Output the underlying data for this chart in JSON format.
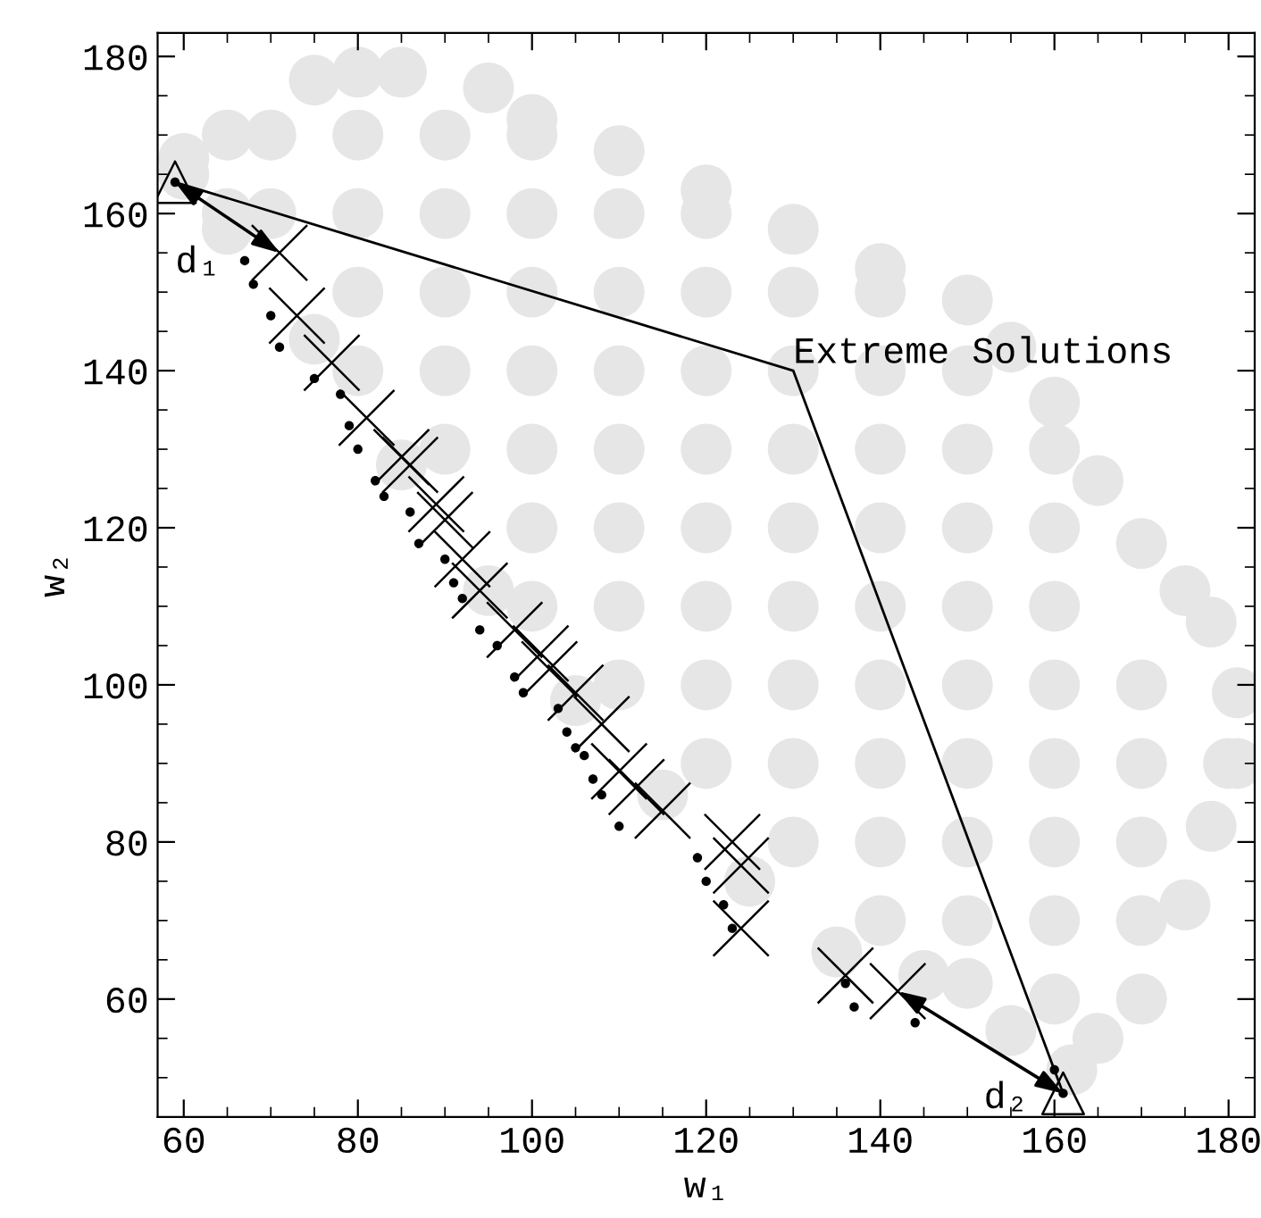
{
  "chart_data": {
    "type": "scatter",
    "xlabel": "w₁",
    "ylabel": "w₂",
    "xlim": [
      57,
      183
    ],
    "ylim": [
      45,
      183
    ],
    "xticks": [
      60,
      {
        "value": 65,
        "label": null
      },
      {
        "value": 70,
        "label": null
      },
      {
        "value": 75,
        "label": null
      },
      80,
      {
        "value": 85,
        "label": null
      },
      {
        "value": 90,
        "label": null
      },
      {
        "value": 95,
        "label": null
      },
      100,
      {
        "value": 105,
        "label": null
      },
      {
        "value": 110,
        "label": null
      },
      {
        "value": 115,
        "label": null
      },
      120,
      {
        "value": 125,
        "label": null
      },
      {
        "value": 130,
        "label": null
      },
      {
        "value": 135,
        "label": null
      },
      140,
      {
        "value": 145,
        "label": null
      },
      {
        "value": 150,
        "label": null
      },
      {
        "value": 155,
        "label": null
      },
      160,
      {
        "value": 165,
        "label": null
      },
      {
        "value": 170,
        "label": null
      },
      {
        "value": 175,
        "label": null
      },
      180
    ],
    "yticks": [
      {
        "value": 50,
        "label": null
      },
      {
        "value": 55,
        "label": null
      },
      60,
      {
        "value": 65,
        "label": null
      },
      {
        "value": 70,
        "label": null
      },
      {
        "value": 75,
        "label": null
      },
      80,
      {
        "value": 85,
        "label": null
      },
      {
        "value": 90,
        "label": null
      },
      {
        "value": 95,
        "label": null
      },
      100,
      {
        "value": 105,
        "label": null
      },
      {
        "value": 110,
        "label": null
      },
      {
        "value": 115,
        "label": null
      },
      120,
      {
        "value": 125,
        "label": null
      },
      {
        "value": 130,
        "label": null
      },
      {
        "value": 135,
        "label": null
      },
      140,
      {
        "value": 145,
        "label": null
      },
      {
        "value": 150,
        "label": null
      },
      {
        "value": 155,
        "label": null
      },
      160,
      {
        "value": 165,
        "label": null
      },
      {
        "value": 170,
        "label": null
      },
      {
        "value": 175,
        "label": null
      },
      180
    ],
    "grid": false,
    "series": [
      {
        "marker": "circle",
        "color": "#e6e6e6",
        "x": [
          60,
          65,
          65,
          70,
          70,
          80,
          80,
          80,
          80,
          90,
          90,
          90,
          90,
          90,
          100,
          100,
          100,
          100,
          100,
          100,
          100,
          110,
          110,
          110,
          110,
          110,
          110,
          110,
          110,
          120,
          120,
          120,
          120,
          120,
          120,
          120,
          120,
          130,
          130,
          130,
          130,
          130,
          130,
          130,
          130,
          140,
          140,
          140,
          140,
          140,
          140,
          140,
          140,
          140,
          150,
          150,
          150,
          150,
          150,
          150,
          150,
          150,
          160,
          160,
          160,
          160,
          160,
          160,
          160,
          160,
          170,
          170,
          170,
          170,
          170,
          180,
          75,
          80,
          85,
          95,
          100,
          120,
          130,
          140,
          150,
          155,
          160,
          165,
          170,
          175,
          178,
          181,
          181,
          178,
          175,
          165,
          162,
          155,
          150,
          145,
          135,
          125,
          115,
          105,
          95,
          85,
          75,
          65,
          60
        ],
        "values": [
          165,
          160,
          170,
          160,
          170,
          140,
          150,
          160,
          170,
          130,
          140,
          150,
          160,
          170,
          110,
          120,
          130,
          140,
          150,
          160,
          170,
          100,
          110,
          120,
          130,
          140,
          150,
          160,
          168,
          90,
          100,
          110,
          120,
          130,
          140,
          150,
          160,
          80,
          90,
          100,
          110,
          120,
          130,
          140,
          150,
          70,
          80,
          90,
          100,
          110,
          120,
          130,
          140,
          150,
          70,
          80,
          90,
          100,
          110,
          120,
          130,
          140,
          60,
          70,
          80,
          90,
          100,
          110,
          120,
          130,
          60,
          70,
          80,
          90,
          100,
          90,
          177,
          178,
          178,
          176,
          172,
          163,
          158,
          153,
          149,
          143,
          136,
          126,
          118,
          112,
          108,
          99,
          90,
          82,
          72,
          55,
          51,
          56,
          62,
          63,
          66,
          75,
          86,
          98,
          112,
          128,
          144,
          158,
          167
        ]
      },
      {
        "marker": "circle",
        "color": "#000000",
        "x": [
          59,
          67,
          68,
          70,
          71,
          75,
          78,
          79,
          80,
          82,
          83,
          86,
          87,
          90,
          91,
          92,
          94,
          96,
          98,
          99,
          103,
          104,
          105,
          106,
          107,
          108,
          110,
          119,
          120,
          122,
          123,
          136,
          137,
          144,
          160,
          161
        ],
        "values": [
          164,
          154,
          151,
          147,
          143,
          139,
          137,
          133,
          130,
          126,
          124,
          122,
          118,
          116,
          113,
          111,
          107,
          105,
          101,
          99,
          97,
          94,
          92,
          91,
          88,
          86,
          82,
          78,
          75,
          72,
          69,
          62,
          59,
          57,
          51,
          48
        ]
      },
      {
        "marker": "cross",
        "color": "#000000",
        "x": [
          71,
          73,
          77,
          81,
          85,
          86,
          89,
          90,
          92,
          94,
          98,
          101,
          102,
          105,
          108,
          110,
          112,
          115,
          123,
          124,
          124,
          136,
          142
        ],
        "values": [
          155,
          147,
          141,
          134,
          129,
          128,
          123,
          121,
          116,
          112,
          107,
          104,
          102,
          99,
          95,
          89,
          87,
          84,
          80,
          77,
          69,
          63,
          61
        ]
      },
      {
        "marker": "triangle",
        "color": "#000000",
        "x": [
          59,
          161
        ],
        "values": [
          164,
          48
        ]
      },
      {
        "type": "line",
        "marker": "none",
        "color": "#000000",
        "x": [
          59,
          130,
          161
        ],
        "values": [
          164,
          140,
          48
        ]
      }
    ],
    "annotations": [
      {
        "text": "Extreme Solutions",
        "x": 130,
        "y": 140
      },
      "d₁",
      "d₂"
    ]
  }
}
